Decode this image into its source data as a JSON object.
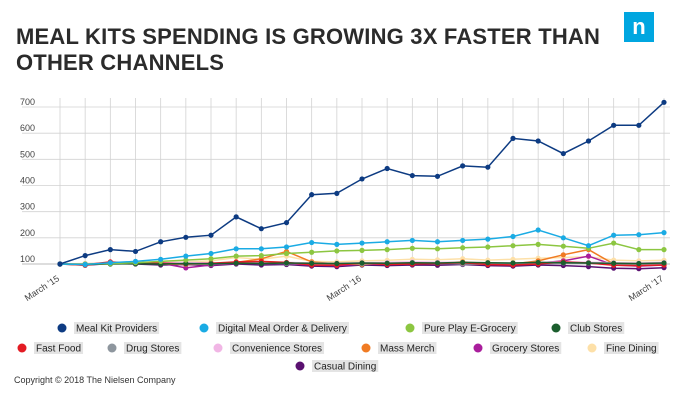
{
  "header": {
    "title": "MEAL KITS SPENDING IS GROWING 3X FASTER THAN OTHER CHANNELS",
    "logo_letter": "n"
  },
  "footer": {
    "copyright": "Copyright © 2018 The Nielsen Company"
  },
  "chart_data": {
    "type": "line",
    "title": "MEAL KITS SPENDING IS GROWING 3X FASTER THAN OTHER CHANNELS",
    "xlabel": "",
    "ylabel": "",
    "ylim": [
      100,
      700
    ],
    "yticks": [
      100,
      200,
      300,
      400,
      500,
      600,
      700
    ],
    "ytick_labels": [
      "100",
      "200",
      "300",
      "400",
      "500",
      "600",
      "700"
    ],
    "x_count": 25,
    "x_tick_labels": [
      {
        "index": 0,
        "label": "March '15"
      },
      {
        "index": 12,
        "label": "March '16"
      },
      {
        "index": 24,
        "label": "March '17"
      }
    ],
    "grid": true,
    "legend_position": "bottom",
    "series": [
      {
        "name": "Meal Kit Providers",
        "color": "#0d3b82",
        "values": [
          100,
          132,
          155,
          148,
          185,
          202,
          210,
          280,
          235,
          258,
          365,
          370,
          425,
          465,
          438,
          435,
          475,
          470,
          580,
          570,
          522,
          570,
          630,
          630,
          718
        ]
      },
      {
        "name": "Digital Meal Order & Delivery",
        "color": "#1aabe4",
        "values": [
          100,
          98,
          105,
          110,
          118,
          130,
          140,
          158,
          158,
          165,
          182,
          175,
          180,
          185,
          190,
          185,
          190,
          195,
          205,
          230,
          200,
          170,
          210,
          212,
          220
        ]
      },
      {
        "name": "Pure Play E-Grocery",
        "color": "#8cc641",
        "values": [
          100,
          100,
          102,
          105,
          110,
          115,
          120,
          130,
          132,
          140,
          145,
          150,
          152,
          155,
          160,
          158,
          162,
          165,
          170,
          175,
          168,
          160,
          180,
          155,
          155
        ]
      },
      {
        "name": "Club Stores",
        "color": "#1b5e2e",
        "values": [
          100,
          99,
          100,
          101,
          100,
          102,
          101,
          103,
          102,
          104,
          103,
          102,
          104,
          103,
          105,
          104,
          106,
          105,
          104,
          106,
          105,
          104,
          103,
          102,
          104
        ]
      },
      {
        "name": "Fast Food",
        "color": "#e31b23",
        "values": [
          100,
          97,
          108,
          102,
          104,
          100,
          103,
          108,
          110,
          106,
          96,
          95,
          104,
          98,
          100,
          102,
          105,
          98,
          96,
          100,
          108,
          104,
          95,
          94,
          96
        ]
      },
      {
        "name": "Drug Stores",
        "color": "#8e969e",
        "values": [
          100,
          98,
          102,
          104,
          103,
          99,
          100,
          104,
          103,
          102,
          100,
          98,
          101,
          100,
          103,
          104,
          100,
          99,
          101,
          102,
          104,
          103,
          98,
          96,
          100
        ]
      },
      {
        "name": "Convenience Stores",
        "color": "#f1b6e5",
        "values": [
          100,
          101,
          103,
          104,
          105,
          106,
          104,
          105,
          107,
          106,
          104,
          103,
          105,
          106,
          108,
          107,
          106,
          105,
          104,
          106,
          108,
          107,
          105,
          104,
          106
        ]
      },
      {
        "name": "Mass Merch",
        "color": "#f07b23",
        "values": [
          100,
          96,
          104,
          102,
          101,
          98,
          100,
          106,
          120,
          148,
          108,
          100,
          98,
          104,
          101,
          104,
          108,
          102,
          100,
          112,
          135,
          155,
          100,
          95,
          98
        ]
      },
      {
        "name": "Grocery Stores",
        "color": "#a91e9c",
        "values": [
          100,
          98,
          103,
          104,
          103,
          85,
          96,
          102,
          104,
          102,
          96,
          94,
          100,
          99,
          102,
          104,
          106,
          100,
          98,
          104,
          112,
          130,
          96,
          92,
          96
        ]
      },
      {
        "name": "Fine Dining",
        "color": "#fde0a8",
        "values": [
          100,
          102,
          104,
          106,
          104,
          108,
          112,
          125,
          118,
          130,
          110,
          108,
          112,
          114,
          118,
          116,
          120,
          115,
          118,
          122,
          125,
          128,
          115,
          112,
          114
        ]
      },
      {
        "name": "Casual Dining",
        "color": "#5a1170",
        "values": [
          100,
          95,
          102,
          100,
          96,
          98,
          94,
          100,
          96,
          98,
          92,
          90,
          96,
          94,
          96,
          95,
          98,
          94,
          92,
          96,
          94,
          90,
          84,
          82,
          86
        ]
      }
    ]
  }
}
